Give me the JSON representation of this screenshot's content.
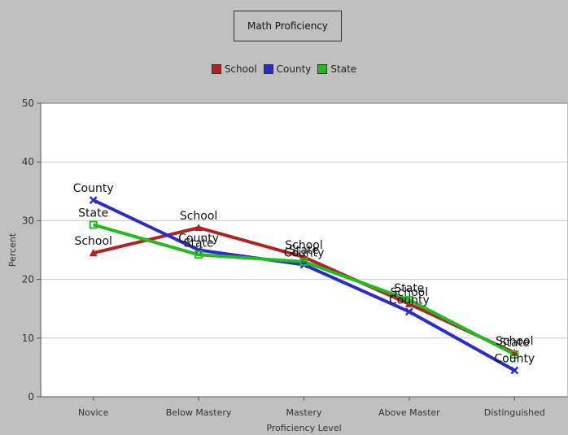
{
  "chart_data": {
    "type": "line",
    "title": "Math Proficiency",
    "xlabel": "Proficiency Level",
    "ylabel": "Percent",
    "categories": [
      "Novice",
      "Below Mastery",
      "Mastery",
      "Above Master",
      "Distinguished"
    ],
    "ylim": [
      0,
      50
    ],
    "yticks": [
      0,
      10,
      20,
      30,
      40,
      50
    ],
    "grid": true,
    "legend_position": "top-center",
    "series": [
      {
        "name": "School",
        "color": "#b22222",
        "marker": "triangle",
        "values": [
          24.5,
          28.8,
          23.8,
          15.8,
          7.5
        ]
      },
      {
        "name": "County",
        "color": "#2b2bcc",
        "marker": "x",
        "values": [
          33.5,
          25.0,
          22.5,
          14.5,
          4.5
        ]
      },
      {
        "name": "State",
        "color": "#22bb22",
        "marker": "square",
        "values": [
          29.3,
          24.2,
          23.0,
          16.5,
          7.2
        ]
      }
    ],
    "data_labels": true
  },
  "colors": {
    "background": "#c0c0c0",
    "plot_background": "#ffffff",
    "grid": "#c8c8c8"
  }
}
